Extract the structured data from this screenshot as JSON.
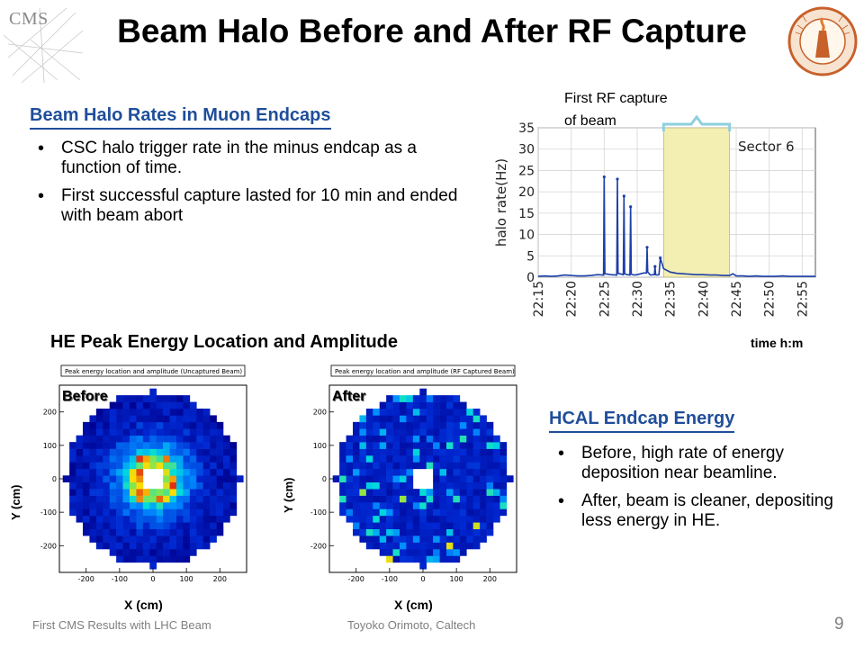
{
  "title": "Beam Halo Before and After RF Capture",
  "logos": {
    "left_text": "CMS"
  },
  "halo_section": {
    "heading": "Beam Halo Rates in Muon Endcaps",
    "bullets": [
      "CSC halo trigger rate in the minus endcap as a function of time.",
      "First successful capture lasted for 10 min and ended with beam abort"
    ]
  },
  "hcal_section": {
    "heading": "HCAL Endcap Energy",
    "bullets": [
      "Before, high rate of energy deposition near beamline.",
      "After, beam is cleaner, depositing less energy in HE."
    ]
  },
  "he_title": "HE Peak Energy Location and Amplitude",
  "footer": {
    "left": "First CMS Results with LHC Beam",
    "middle": "Toyoko Orimoto, Caltech",
    "page": "9"
  },
  "colors": {
    "heading_blue": "#1f4e9a",
    "series_blue": "#1c3fa8",
    "capture_band": "#f3eeb1",
    "bracket": "#8ed0dc"
  },
  "chart_data": [
    {
      "type": "line",
      "ylabel": "halo rate(Hz)",
      "xlabel": "time h:m",
      "legend": "Sector 6",
      "annotation": "First RF capture of beam",
      "capture_start": "22:34",
      "capture_end": "22:44",
      "xlim": [
        0,
        42
      ],
      "ylim": [
        0,
        35
      ],
      "yticks": [
        0,
        5,
        10,
        15,
        20,
        25,
        30,
        35
      ],
      "xticks": [
        "22:15",
        "22:20",
        "22:25",
        "22:30",
        "22:35",
        "22:40",
        "22:45",
        "22:50",
        "22:55"
      ],
      "x": [
        0,
        1,
        2,
        3,
        4,
        5,
        6,
        7,
        8,
        9,
        9.9,
        10,
        10.1,
        11,
        11.9,
        12,
        12.1,
        12.9,
        13,
        13.1,
        13.5,
        13.9,
        14,
        14.1,
        14.5,
        15,
        16,
        16.4,
        16.5,
        16.6,
        17,
        17.6,
        17.7,
        17.8,
        18,
        18.3,
        18.5,
        19,
        20,
        21,
        22,
        23,
        24,
        25,
        26,
        27,
        28,
        29,
        29.5,
        30,
        31,
        32,
        33,
        34,
        35,
        36,
        37,
        38,
        39,
        40,
        41,
        42
      ],
      "values": [
        0.2,
        0.3,
        0.2,
        0.3,
        0.5,
        0.4,
        0.3,
        0.3,
        0.4,
        0.6,
        0.5,
        23.5,
        0.8,
        0.6,
        0.5,
        23,
        0.9,
        0.6,
        19,
        0.8,
        0.6,
        0.5,
        16.5,
        0.7,
        0.5,
        0.6,
        1.0,
        1.0,
        7,
        1.2,
        0.5,
        0.6,
        2.5,
        0.6,
        0.5,
        0.6,
        4.5,
        2.0,
        1.2,
        0.9,
        0.8,
        0.7,
        0.6,
        0.6,
        0.5,
        0.5,
        0.4,
        0.4,
        0.8,
        0.3,
        0.3,
        0.2,
        0.3,
        0.2,
        0.2,
        0.2,
        0.3,
        0.2,
        0.2,
        0.2,
        0.2,
        0.2
      ]
    },
    {
      "type": "heatmap",
      "title": "Peak energy location and amplitude (Uncaptured Beam)",
      "panel_label": "Before",
      "xlabel": "X (cm)",
      "ylabel": "Y (cm)",
      "xlim": [
        -280,
        280
      ],
      "ylim": [
        -280,
        280
      ],
      "xticks": [
        -200,
        -100,
        0,
        100,
        200
      ],
      "yticks": [
        -200,
        -100,
        0,
        100,
        200
      ],
      "seed": 7,
      "hot_center": true
    },
    {
      "type": "heatmap",
      "title": "Peak energy location and amplitude (RF Captured Beam)",
      "panel_label": "After",
      "xlabel": "X (cm)",
      "ylabel": "Y (cm)",
      "xlim": [
        -280,
        280
      ],
      "ylim": [
        -280,
        280
      ],
      "xticks": [
        -200,
        -100,
        0,
        100,
        200
      ],
      "yticks": [
        -200,
        -100,
        0,
        100,
        200
      ],
      "seed": 31,
      "hot_center": false
    }
  ]
}
